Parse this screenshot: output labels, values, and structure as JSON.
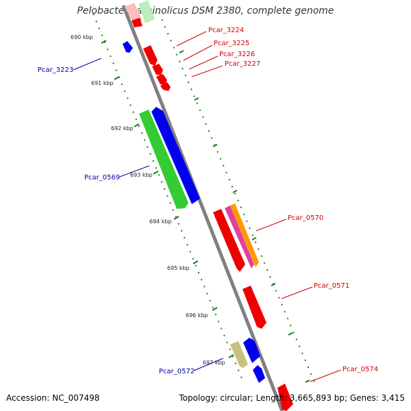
{
  "title": "Pelobacter carbinolicus DSM 2380, complete genome",
  "footer": {
    "accession": "Accession: NC_007498",
    "topology": "Topology: circular; Length: 3,665,893 bp; Genes: 3,415"
  },
  "colors": {
    "backbone": "#808080",
    "tick_track": "#1a7a1a",
    "red_gene": "#ee0000",
    "blue_gene": "#0000ee",
    "green_gene": "#33cc33",
    "khaki_gene": "#c8c080",
    "magenta_gene": "#e040a0",
    "orange_gene": "#ff9900",
    "red_label": "#cc0000",
    "blue_label": "#000099"
  },
  "ticks": [
    {
      "label": "690 kbp"
    },
    {
      "label": "691 kbp"
    },
    {
      "label": "692 kbp"
    },
    {
      "label": "693 kbp"
    },
    {
      "label": "694 kbp"
    },
    {
      "label": "695 kbp"
    },
    {
      "label": "696 kbp"
    },
    {
      "label": "697 kbp"
    }
  ],
  "gene_labels": {
    "pcar_3224": "Pcar_3224",
    "pcar_3225": "Pcar_3225",
    "pcar_3226": "Pcar_3226",
    "pcar_3227": "Pcar_3227",
    "pcar_3223": "Pcar_3223",
    "pcar_0569": "Pcar_0569",
    "pcar_0570": "Pcar_0570",
    "pcar_0571": "Pcar_0571",
    "pcar_0572": "Pcar_0572",
    "pcar_0574": "Pcar_0574"
  }
}
